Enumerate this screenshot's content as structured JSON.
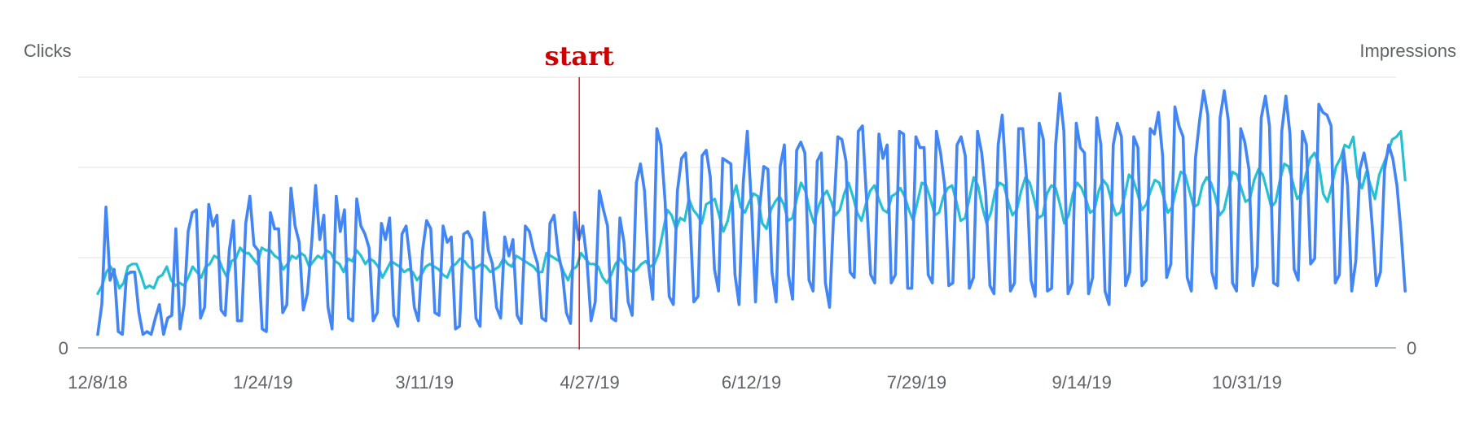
{
  "chart_data": {
    "type": "line",
    "left_axis_label": "Clicks",
    "right_axis_label": "Impressions",
    "left_zero_label": "0",
    "right_zero_label": "0",
    "x_tick_labels": [
      "12/8/18",
      "1/24/19",
      "3/11/19",
      "4/27/19",
      "6/12/19",
      "7/29/19",
      "9/14/19",
      "10/31/19"
    ],
    "x_tick_positions": [
      0,
      47,
      93,
      140,
      186,
      233,
      280,
      327
    ],
    "date_range": [
      "2018-12-08",
      "2019-12-15"
    ],
    "gridlines": 3,
    "grid": true,
    "marker": {
      "label": "start",
      "date": "2019-04-24",
      "color": "#cc0000"
    },
    "series": [
      {
        "color": "#4285f4",
        "axis": "left",
        "values": [
          0.05,
          0.16,
          0.52,
          0.25,
          0.29,
          0.06,
          0.05,
          0.27,
          0.28,
          0.28,
          0.13,
          0.05,
          0.06,
          0.05,
          0.11,
          0.16,
          0.05,
          0.11,
          0.12,
          0.44,
          0.07,
          0.16,
          0.43,
          0.5,
          0.51,
          0.11,
          0.15,
          0.53,
          0.45,
          0.49,
          0.14,
          0.12,
          0.36,
          0.47,
          0.1,
          0.1,
          0.46,
          0.56,
          0.38,
          0.36,
          0.07,
          0.06,
          0.5,
          0.44,
          0.44,
          0.13,
          0.16,
          0.59,
          0.45,
          0.39,
          0.14,
          0.2,
          0.38,
          0.6,
          0.4,
          0.49,
          0.15,
          0.07,
          0.56,
          0.43,
          0.51,
          0.11,
          0.1,
          0.55,
          0.45,
          0.42,
          0.37,
          0.1,
          0.13,
          0.46,
          0.4,
          0.48,
          0.12,
          0.08,
          0.42,
          0.45,
          0.32,
          0.15,
          0.1,
          0.36,
          0.47,
          0.44,
          0.13,
          0.12,
          0.45,
          0.39,
          0.41,
          0.07,
          0.08,
          0.42,
          0.43,
          0.4,
          0.11,
          0.08,
          0.5,
          0.36,
          0.31,
          0.15,
          0.11,
          0.41,
          0.34,
          0.4,
          0.12,
          0.09,
          0.45,
          0.43,
          0.36,
          0.31,
          0.11,
          0.1,
          0.46,
          0.49,
          0.35,
          0.28,
          0.13,
          0.09,
          0.5,
          0.4,
          0.45,
          0.32,
          0.1,
          0.17,
          0.58,
          0.51,
          0.45,
          0.11,
          0.1,
          0.48,
          0.39,
          0.17,
          0.12,
          0.61,
          0.68,
          0.58,
          0.3,
          0.18,
          0.81,
          0.75,
          0.54,
          0.19,
          0.16,
          0.58,
          0.7,
          0.72,
          0.49,
          0.17,
          0.19,
          0.71,
          0.73,
          0.63,
          0.29,
          0.21,
          0.7,
          0.69,
          0.68,
          0.27,
          0.16,
          0.61,
          0.8,
          0.53,
          0.17,
          0.52,
          0.67,
          0.66,
          0.28,
          0.17,
          0.67,
          0.75,
          0.27,
          0.18,
          0.73,
          0.76,
          0.72,
          0.25,
          0.21,
          0.69,
          0.72,
          0.24,
          0.15,
          0.49,
          0.78,
          0.77,
          0.69,
          0.28,
          0.26,
          0.8,
          0.82,
          0.55,
          0.27,
          0.24,
          0.79,
          0.7,
          0.75,
          0.24,
          0.27,
          0.8,
          0.79,
          0.22,
          0.22,
          0.78,
          0.74,
          0.74,
          0.27,
          0.24,
          0.8,
          0.72,
          0.6,
          0.23,
          0.24,
          0.75,
          0.78,
          0.71,
          0.22,
          0.26,
          0.8,
          0.72,
          0.57,
          0.23,
          0.2,
          0.75,
          0.86,
          0.61,
          0.21,
          0.24,
          0.81,
          0.81,
          0.61,
          0.25,
          0.19,
          0.83,
          0.77,
          0.21,
          0.22,
          0.75,
          0.94,
          0.8,
          0.2,
          0.24,
          0.83,
          0.74,
          0.72,
          0.2,
          0.26,
          0.85,
          0.75,
          0.21,
          0.16,
          0.75,
          0.83,
          0.78,
          0.23,
          0.28,
          0.78,
          0.74,
          0.23,
          0.25,
          0.81,
          0.79,
          0.87,
          0.71,
          0.26,
          0.31,
          0.89,
          0.82,
          0.78,
          0.26,
          0.21,
          0.7,
          0.84,
          0.95,
          0.86,
          0.28,
          0.22,
          0.85,
          0.95,
          0.84,
          0.24,
          0.21,
          0.81,
          0.76,
          0.66,
          0.23,
          0.3,
          0.85,
          0.93,
          0.82,
          0.24,
          0.23,
          0.8,
          0.93,
          0.79,
          0.29,
          0.25,
          0.8,
          0.75,
          0.31,
          0.33,
          0.9,
          0.87,
          0.86,
          0.82,
          0.24,
          0.27,
          0.73,
          0.6,
          0.21,
          0.32,
          0.66,
          0.72,
          0.64,
          0.45,
          0.23,
          0.28,
          0.66,
          0.75,
          0.7,
          0.6,
          0.43,
          0.21
        ],
        "raw_values": [
          0.05,
          0.16,
          0.52,
          0.25,
          0.29,
          0.06,
          0.05,
          0.27,
          0.28,
          0.28,
          0.13,
          0.05,
          0.06,
          0.05,
          0.11,
          0.16,
          0.05,
          0.11,
          0.12,
          0.44,
          0.07,
          0.16,
          0.43,
          0.5,
          0.51,
          0.11,
          0.15,
          0.53,
          0.45,
          0.49,
          0.14,
          0.12,
          0.36,
          0.47,
          0.1,
          0.1,
          0.46,
          0.56,
          0.38,
          0.36,
          0.07,
          0.06,
          0.5,
          0.44,
          0.44,
          0.13,
          0.16,
          0.59,
          0.45,
          0.39,
          0.14,
          0.2,
          0.38,
          0.6,
          0.4,
          0.49,
          0.15,
          0.07,
          0.56,
          0.43,
          0.51,
          0.11,
          0.1,
          0.55,
          0.45,
          0.42,
          0.37,
          0.1,
          0.13,
          0.46,
          0.4,
          0.48,
          0.12,
          0.08,
          0.42,
          0.45,
          0.32,
          0.15,
          0.1,
          0.36,
          0.47,
          0.44,
          0.13,
          0.12,
          0.45,
          0.39,
          0.41,
          0.07,
          0.08,
          0.42,
          0.43,
          0.4,
          0.11,
          0.08,
          0.5,
          0.36,
          0.31,
          0.15,
          0.11,
          0.41,
          0.34,
          0.4,
          0.12,
          0.09,
          0.45,
          0.43,
          0.36,
          0.31,
          0.11,
          0.1,
          0.46,
          0.49,
          0.35,
          0.28,
          0.13,
          0.09,
          0.5,
          0.4,
          0.45,
          0.32,
          0.1,
          0.17,
          0.58,
          0.51,
          0.45,
          0.11,
          0.1,
          0.48,
          0.39,
          0.17,
          0.12,
          0.61,
          0.68,
          0.58,
          0.3,
          0.18,
          0.81,
          0.75,
          0.54,
          0.19,
          0.16,
          0.58,
          0.7,
          0.72,
          0.49,
          0.17,
          0.19,
          0.71,
          0.73,
          0.63,
          0.29,
          0.21,
          0.7,
          0.69,
          0.68,
          0.27,
          0.16,
          0.61,
          0.8,
          0.53,
          0.17,
          0.52,
          0.67,
          0.66,
          0.28,
          0.17,
          0.67,
          0.75,
          0.27,
          0.18,
          0.73,
          0.76,
          0.72,
          0.25,
          0.21,
          0.69,
          0.72,
          0.24,
          0.15,
          0.49,
          0.78,
          0.77,
          0.69,
          0.28,
          0.26,
          0.8,
          0.82,
          0.55,
          0.27,
          0.24,
          0.79,
          0.7,
          0.75,
          0.24,
          0.27,
          0.8,
          0.79,
          0.22,
          0.22,
          0.78,
          0.74,
          0.74,
          0.27,
          0.24,
          0.8,
          0.72,
          0.6,
          0.23,
          0.24,
          0.75,
          0.78,
          0.71,
          0.22,
          0.26,
          0.8,
          0.72,
          0.57,
          0.23,
          0.2,
          0.75,
          0.86,
          0.61,
          0.21,
          0.24,
          0.81,
          0.81,
          0.61,
          0.25,
          0.19,
          0.83,
          0.77,
          0.21,
          0.22,
          0.75,
          0.94,
          0.8,
          0.2,
          0.24,
          0.83,
          0.74,
          0.72,
          0.2,
          0.26,
          0.85,
          0.75,
          0.21,
          0.16,
          0.75,
          0.83,
          0.78,
          0.23,
          0.28,
          0.78,
          0.74,
          0.23,
          0.25,
          0.81,
          0.79,
          0.87,
          0.71,
          0.26,
          0.31,
          0.89,
          0.82,
          0.78,
          0.26,
          0.21,
          0.7,
          0.84,
          0.95,
          0.86,
          0.28,
          0.22,
          0.85,
          0.95,
          0.84,
          0.24,
          0.21,
          0.81,
          0.76,
          0.66,
          0.23,
          0.3,
          0.85,
          0.93,
          0.82,
          0.24,
          0.23,
          0.8,
          0.93,
          0.79,
          0.29,
          0.25,
          0.8,
          0.75,
          0.31,
          0.33,
          0.9,
          0.87,
          0.86,
          0.82,
          0.24,
          0.27,
          0.73,
          0.6,
          0.21,
          0.32,
          0.66,
          0.72,
          0.64,
          0.45,
          0.23,
          0.28,
          0.66,
          0.75,
          0.7,
          0.6,
          0.43,
          0.21
        ]
      },
      {
        "color": "#24c1d2",
        "axis": "right",
        "values": [
          0.2,
          0.23,
          0.28,
          0.3,
          0.27,
          0.22,
          0.24,
          0.3,
          0.31,
          0.31,
          0.27,
          0.22,
          0.23,
          0.22,
          0.26,
          0.27,
          0.3,
          0.25,
          0.23,
          0.24,
          0.23,
          0.26,
          0.3,
          0.28,
          0.26,
          0.3,
          0.31,
          0.34,
          0.33,
          0.29,
          0.26,
          0.32,
          0.33,
          0.37,
          0.35,
          0.35,
          0.33,
          0.31,
          0.37,
          0.36,
          0.36,
          0.34,
          0.33,
          0.29,
          0.31,
          0.34,
          0.33,
          0.35,
          0.34,
          0.3,
          0.32,
          0.34,
          0.33,
          0.36,
          0.35,
          0.32,
          0.31,
          0.28,
          0.33,
          0.32,
          0.36,
          0.34,
          0.31,
          0.33,
          0.32,
          0.3,
          0.26,
          0.29,
          0.32,
          0.31,
          0.3,
          0.28,
          0.29,
          0.28,
          0.25,
          0.27,
          0.3,
          0.31,
          0.3,
          0.29,
          0.27,
          0.26,
          0.3,
          0.31,
          0.33,
          0.32,
          0.3,
          0.29,
          0.3,
          0.31,
          0.3,
          0.28,
          0.29,
          0.3,
          0.33,
          0.31,
          0.3,
          0.34,
          0.33,
          0.32,
          0.31,
          0.3,
          0.28,
          0.28,
          0.35,
          0.34,
          0.33,
          0.32,
          0.28,
          0.25,
          0.29,
          0.3,
          0.35,
          0.33,
          0.31,
          0.31,
          0.3,
          0.26,
          0.24,
          0.27,
          0.31,
          0.33,
          0.31,
          0.29,
          0.28,
          0.29,
          0.31,
          0.32,
          0.3,
          0.31,
          0.35,
          0.43,
          0.51,
          0.49,
          0.44,
          0.48,
          0.47,
          0.55,
          0.51,
          0.49,
          0.46,
          0.53,
          0.54,
          0.55,
          0.49,
          0.43,
          0.47,
          0.55,
          0.6,
          0.52,
          0.5,
          0.54,
          0.57,
          0.56,
          0.46,
          0.44,
          0.51,
          0.54,
          0.56,
          0.53,
          0.47,
          0.48,
          0.55,
          0.61,
          0.58,
          0.51,
          0.46,
          0.52,
          0.56,
          0.58,
          0.54,
          0.49,
          0.51,
          0.57,
          0.61,
          0.56,
          0.5,
          0.47,
          0.53,
          0.58,
          0.6,
          0.55,
          0.51,
          0.5,
          0.56,
          0.57,
          0.59,
          0.56,
          0.51,
          0.47,
          0.54,
          0.61,
          0.6,
          0.55,
          0.49,
          0.5,
          0.56,
          0.59,
          0.6,
          0.54,
          0.47,
          0.48,
          0.55,
          0.63,
          0.6,
          0.52,
          0.46,
          0.5,
          0.58,
          0.61,
          0.6,
          0.54,
          0.49,
          0.51,
          0.58,
          0.63,
          0.61,
          0.55,
          0.48,
          0.49,
          0.57,
          0.6,
          0.59,
          0.53,
          0.46,
          0.49,
          0.57,
          0.61,
          0.59,
          0.55,
          0.5,
          0.51,
          0.58,
          0.62,
          0.6,
          0.54,
          0.49,
          0.5,
          0.56,
          0.64,
          0.62,
          0.57,
          0.51,
          0.53,
          0.58,
          0.62,
          0.61,
          0.56,
          0.5,
          0.52,
          0.59,
          0.65,
          0.64,
          0.58,
          0.52,
          0.53,
          0.6,
          0.63,
          0.61,
          0.56,
          0.49,
          0.51,
          0.58,
          0.65,
          0.64,
          0.59,
          0.54,
          0.55,
          0.62,
          0.66,
          0.64,
          0.58,
          0.52,
          0.54,
          0.62,
          0.68,
          0.67,
          0.61,
          0.55,
          0.57,
          0.64,
          0.7,
          0.72,
          0.68,
          0.57,
          0.54,
          0.6,
          0.67,
          0.7,
          0.75,
          0.74,
          0.78,
          0.63,
          0.59,
          0.65,
          0.6,
          0.55,
          0.64,
          0.68,
          0.72,
          0.77,
          0.78,
          0.8,
          0.62
        ]
      }
    ]
  }
}
